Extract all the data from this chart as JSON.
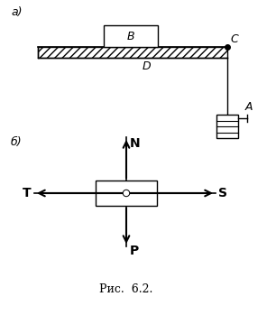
{
  "bg_color": "#ffffff",
  "label_a": "a)",
  "label_b": "б)",
  "label_fig": "Рис.  6.2.",
  "label_B": "B",
  "label_C": "C",
  "label_D": "D",
  "label_A": "A",
  "label_N": "N",
  "label_S": "S",
  "label_T": "T",
  "label_P": "P",
  "hatch_pattern": "////",
  "font_size_labels": 9,
  "font_size_bold": 10,
  "font_size_caption": 9,
  "fig_width": 3.06,
  "fig_height": 3.49,
  "dpi": 100
}
